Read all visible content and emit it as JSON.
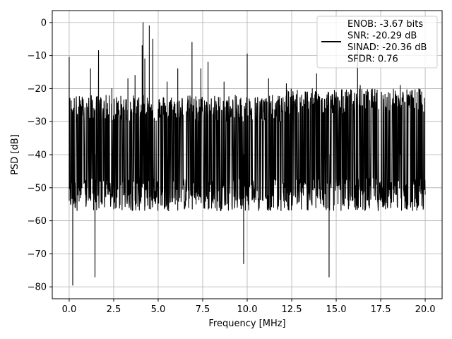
{
  "chart_data": {
    "type": "line",
    "title": "",
    "xlabel": "Frequency [MHz]",
    "ylabel": "PSD [dB]",
    "xlim": [
      -0.95,
      20.95
    ],
    "ylim": [
      -83.6,
      3.6
    ],
    "xticks": [
      0.0,
      2.5,
      5.0,
      7.5,
      10.0,
      12.5,
      15.0,
      17.5,
      20.0
    ],
    "xtick_labels": [
      "0.0",
      "2.5",
      "5.0",
      "7.5",
      "10.0",
      "12.5",
      "15.0",
      "17.5",
      "20.0"
    ],
    "yticks": [
      0,
      -10,
      -20,
      -30,
      -40,
      -50,
      -60,
      -70,
      -80
    ],
    "ytick_labels": [
      "0",
      "−10",
      "−20",
      "−30",
      "−40",
      "−50",
      "−60",
      "−70",
      "−80"
    ],
    "grid": true,
    "legend_position": "top-right",
    "legend_lines": [
      "ENOB: -3.67 bits",
      "SNR: -20.29 dB",
      "SINAD: -20.36 dB",
      "SFDR: 0.76"
    ],
    "series": [
      {
        "color": "#000000",
        "x_start": 0.0,
        "x_end": 20.0,
        "floor_db": -40,
        "upper_envelope_db": -26,
        "lower_envelope_db": -52,
        "spikes": [
          {
            "x": 0.0,
            "y": -10.5
          },
          {
            "x": 0.2,
            "y": -79.5
          },
          {
            "x": 1.2,
            "y": -14.0
          },
          {
            "x": 1.45,
            "y": -77.0
          },
          {
            "x": 1.65,
            "y": -8.5
          },
          {
            "x": 2.4,
            "y": -20.0
          },
          {
            "x": 3.3,
            "y": -17.0
          },
          {
            "x": 3.7,
            "y": -16.0
          },
          {
            "x": 4.1,
            "y": -7.0
          },
          {
            "x": 4.15,
            "y": 0.0
          },
          {
            "x": 4.25,
            "y": -11.0
          },
          {
            "x": 4.5,
            "y": -1.0
          },
          {
            "x": 4.7,
            "y": -5.0
          },
          {
            "x": 5.5,
            "y": -18.0
          },
          {
            "x": 6.1,
            "y": -14.0
          },
          {
            "x": 6.9,
            "y": -6.0
          },
          {
            "x": 7.4,
            "y": -14.0
          },
          {
            "x": 7.8,
            "y": -12.0
          },
          {
            "x": 8.7,
            "y": -18.0
          },
          {
            "x": 9.8,
            "y": -73.0
          },
          {
            "x": 10.0,
            "y": -9.5
          },
          {
            "x": 11.2,
            "y": -17.0
          },
          {
            "x": 12.2,
            "y": -18.5
          },
          {
            "x": 13.9,
            "y": -15.5
          },
          {
            "x": 14.6,
            "y": -77.0
          },
          {
            "x": 16.2,
            "y": -7.5
          },
          {
            "x": 16.35,
            "y": -19.0
          },
          {
            "x": 17.3,
            "y": -21.0
          },
          {
            "x": 18.6,
            "y": -19.0
          }
        ]
      }
    ]
  }
}
